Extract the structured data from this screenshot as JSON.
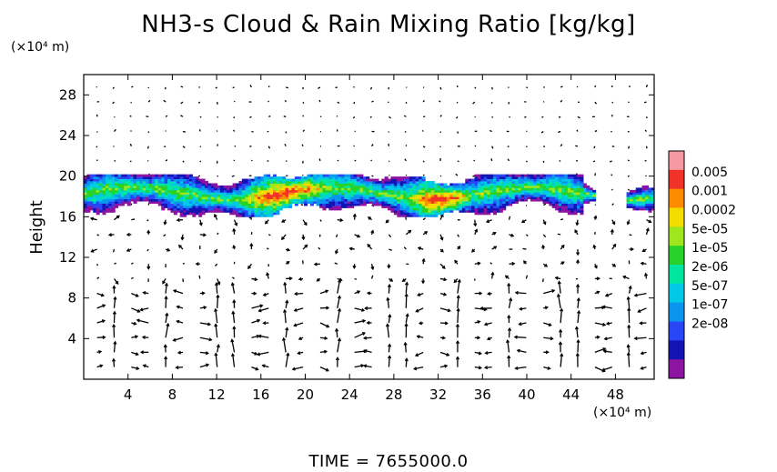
{
  "chart_data": {
    "type": "heatmap",
    "title": "NH3-s Cloud & Rain Mixing Ratio [kg/kg]",
    "ylabel": "Height",
    "y_unit": "(×10⁴ m)",
    "x_unit": "(×10⁴ m)",
    "footer": "TIME  =  7655000.0",
    "xlim": [
      0,
      51.5
    ],
    "ylim": [
      0,
      30
    ],
    "x_ticks": [
      4,
      8,
      12,
      16,
      20,
      24,
      28,
      32,
      36,
      40,
      44,
      48
    ],
    "y_ticks": [
      4,
      8,
      12,
      16,
      20,
      24,
      28
    ],
    "colorbar": {
      "labels": [
        "0.005",
        "0.001",
        "0.0002",
        "5e-05",
        "1e-05",
        "2e-06",
        "5e-07",
        "1e-07",
        "2e-08"
      ],
      "colors": [
        "#f59aa0",
        "#f03228",
        "#ff8c00",
        "#f5dc00",
        "#a0e61e",
        "#28d228",
        "#00e6a0",
        "#00c8e6",
        "#0a96f0",
        "#2846f5",
        "#1414b4",
        "#8c14a0"
      ]
    },
    "cloud_layer": {
      "x_range": [
        0,
        51.5
      ],
      "height_range": [
        16,
        20
      ],
      "peak_regions_x": [
        [
          14,
          22
        ],
        [
          29,
          35
        ]
      ],
      "peak_level": "0.0002"
    },
    "wind_vectors": {
      "lower_layer_height_range": [
        0,
        8
      ],
      "grid": "dots with arrows; strong circulation cells below 8"
    }
  }
}
